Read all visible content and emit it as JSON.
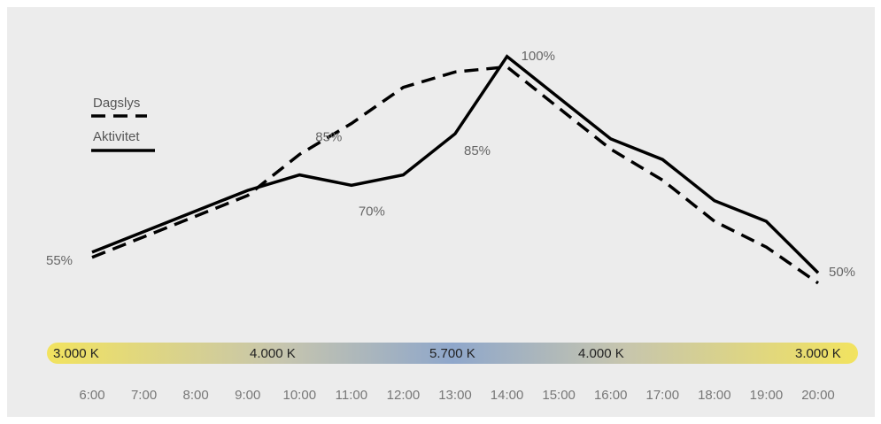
{
  "chart_data": {
    "type": "line",
    "x": [
      "6:00",
      "7:00",
      "8:00",
      "9:00",
      "10:00",
      "11:00",
      "12:00",
      "13:00",
      "14:00",
      "15:00",
      "16:00",
      "17:00",
      "18:00",
      "19:00",
      "20:00"
    ],
    "series": [
      {
        "name": "Dagslys",
        "style": "dashed",
        "color": "#000000",
        "values": [
          55,
          59,
          63,
          67,
          75,
          81,
          88,
          91,
          92,
          84,
          76,
          70,
          62,
          57,
          50
        ]
      },
      {
        "name": "Aktivitet",
        "style": "solid",
        "color": "#000000",
        "values": [
          56,
          60,
          64,
          68,
          71,
          69,
          71,
          79,
          94,
          86,
          78,
          74,
          66,
          62,
          52
        ]
      }
    ],
    "annotations": [
      {
        "text": "55%",
        "x": "6:00"
      },
      {
        "text": "70%",
        "x": "11:00"
      },
      {
        "text": "85%",
        "x": "10:00"
      },
      {
        "text": "85%",
        "x": "13:00"
      },
      {
        "text": "100%",
        "x": "14:00"
      },
      {
        "text": "50%",
        "x": "20:00"
      }
    ],
    "color_temperature_bar": {
      "labels": [
        {
          "text": "3.000 K",
          "at": "6:00",
          "color": "#f2e35f"
        },
        {
          "text": "4.000 K",
          "at": "10:00",
          "color": "#c6c5ae"
        },
        {
          "text": "5.700 K",
          "at": "14:00",
          "color": "#8fa7cb"
        },
        {
          "text": "4.000 K",
          "at": "17:00",
          "color": "#c6c5ae"
        },
        {
          "text": "3.000 K",
          "at": "20:00",
          "color": "#f2e35f"
        }
      ]
    },
    "legend": {
      "placement": "top-left",
      "entries": [
        "Dagslys",
        "Aktivitet"
      ]
    },
    "grid": false,
    "title": "",
    "xlabel": "",
    "ylabel": ""
  }
}
